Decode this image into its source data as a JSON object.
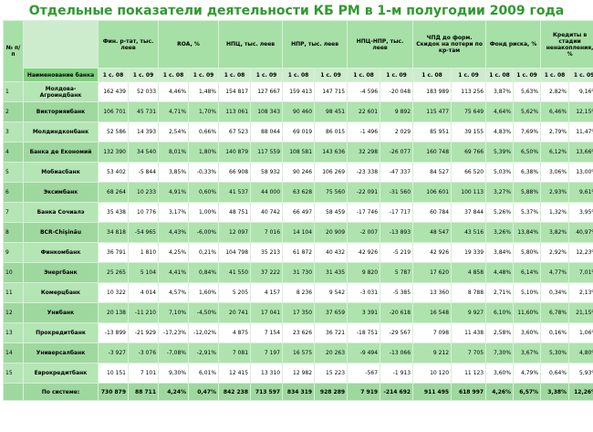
{
  "title": "Отдельные показатели деятельности КБ РМ в 1-м полугодии 2009 года",
  "header": {
    "num": "№ п/п",
    "bank_name": "Наименование банка",
    "groups": [
      "Фин. р-тат, тыс. леев",
      "ROA, %",
      "НПЦ, тыс. леев",
      "НПР, тыс. леев",
      "НПЦ-НПР, тыс. леев",
      "ЧПД до форм. Скидок на потери по кр-там",
      "Фонд риска, %",
      "Кредиты в стадии ненакопления, %"
    ],
    "sub": [
      "1 с. 08",
      "1 с. 09"
    ]
  },
  "rows": [
    {
      "n": "1",
      "name": "Молдова-Агроиндбанк",
      "v": [
        "162 439",
        "52 033",
        "4,46%",
        "1,48%",
        "154 817",
        "127 667",
        "159 413",
        "147 715",
        "-4 596",
        "-20 048",
        "183 989",
        "113 256",
        "3,87%",
        "5,63%",
        "2,82%",
        "9,16%"
      ]
    },
    {
      "n": "2",
      "name": "Викторияибанк",
      "v": [
        "106 701",
        "45 731",
        "4,71%",
        "1,70%",
        "113 061",
        "108 343",
        "90 460",
        "98 451",
        "22 601",
        "9 892",
        "115 477",
        "75 649",
        "4,64%",
        "5,62%",
        "6,46%",
        "12,15%"
      ]
    },
    {
      "n": "3",
      "name": "Молдиндконбанк",
      "v": [
        "52 586",
        "14 393",
        "2,54%",
        "0,66%",
        "67 523",
        "88 044",
        "69 019",
        "86 015",
        "-1 496",
        "2 029",
        "85 951",
        "39 155",
        "4,83%",
        "7,69%",
        "2,79%",
        "11,47%"
      ]
    },
    {
      "n": "4",
      "name": "Банка де Економий",
      "v": [
        "132 390",
        "34 540",
        "8,01%",
        "1,80%",
        "140 879",
        "117 559",
        "108 581",
        "143 636",
        "32 298",
        "-26 077",
        "160 748",
        "69 766",
        "5,39%",
        "6,50%",
        "6,12%",
        "13,66%"
      ]
    },
    {
      "n": "5",
      "name": "Мобиасбанк",
      "v": [
        "53 402",
        "-5 844",
        "3,85%",
        "-0,33%",
        "66 908",
        "58 932",
        "90 246",
        "106 269",
        "-23 338",
        "-47 337",
        "84 527",
        "66 520",
        "5,03%",
        "6,38%",
        "3,06%",
        "13,00%"
      ]
    },
    {
      "n": "6",
      "name": "Эксимбанк",
      "v": [
        "68 264",
        "10 233",
        "4,91%",
        "0,60%",
        "41 537",
        "44 000",
        "63 628",
        "75 560",
        "-22 091",
        "-31 560",
        "106 601",
        "100 113",
        "3,27%",
        "5,88%",
        "2,93%",
        "9,61%"
      ]
    },
    {
      "n": "7",
      "name": "Банка Сочиалэ",
      "v": [
        "35 438",
        "10 776",
        "3,17%",
        "1,00%",
        "48 751",
        "40 742",
        "66 497",
        "58 459",
        "-17 746",
        "-17 717",
        "60 784",
        "37 844",
        "5,26%",
        "5,37%",
        "1,32%",
        "3,95%"
      ]
    },
    {
      "n": "8",
      "name": "BCR-Chişinău",
      "v": [
        "34 818",
        "-54 965",
        "4,43%",
        "-6,00%",
        "12 097",
        "7 016",
        "14 104",
        "20 909",
        "-2 007",
        "-13 893",
        "48 547",
        "43 516",
        "3,26%",
        "13,84%",
        "3,82%",
        "40,97%"
      ]
    },
    {
      "n": "9",
      "name": "Финкомбанк",
      "v": [
        "36 791",
        "1 810",
        "4,25%",
        "0,21%",
        "104 798",
        "35 213",
        "61 872",
        "40 432",
        "42 926",
        "-5 219",
        "42 926",
        "19 339",
        "3,84%",
        "5,80%",
        "2,92%",
        "12,23%"
      ]
    },
    {
      "n": "10",
      "name": "Энергбанк",
      "v": [
        "25 265",
        "5 104",
        "4,41%",
        "0,84%",
        "41 550",
        "37 222",
        "31 730",
        "31 435",
        "9 820",
        "5 787",
        "17 620",
        "4 858",
        "4,48%",
        "6,14%",
        "4,77%",
        "7,01%"
      ]
    },
    {
      "n": "11",
      "name": "Комерцбанк",
      "v": [
        "10 322",
        "4 014",
        "4,57%",
        "1,60%",
        "5 205",
        "4 157",
        "8 236",
        "9 542",
        "-3 031",
        "-5 385",
        "13 360",
        "8 788",
        "2,71%",
        "5,10%",
        "0,34%",
        "2,13%"
      ]
    },
    {
      "n": "12",
      "name": "Унибанк",
      "v": [
        "20 138",
        "-11 210",
        "7,10%",
        "-4,50%",
        "20 741",
        "17 041",
        "17 350",
        "37 659",
        "3 391",
        "-20 618",
        "16 548",
        "9 927",
        "6,10%",
        "11,60%",
        "6,78%",
        "21,15%"
      ]
    },
    {
      "n": "13",
      "name": "Прокредитбанк",
      "v": [
        "-13 899",
        "-21 929",
        "-17,23%",
        "-12,02%",
        "4 875",
        "7 154",
        "23 626",
        "36 721",
        "-18 751",
        "-29 567",
        "7 098",
        "11 438",
        "2,58%",
        "3,60%",
        "0,16%",
        "1,06%"
      ]
    },
    {
      "n": "14",
      "name": "Универсалбанк",
      "v": [
        "-3 927",
        "-3 076",
        "-7,08%",
        "-2,91%",
        "7 081",
        "7 197",
        "16 575",
        "20 263",
        "-9 494",
        "-13 066",
        "9 212",
        "7 705",
        "7,30%",
        "3,67%",
        "5,30%",
        "4,80%"
      ]
    },
    {
      "n": "15",
      "name": "Еврокредитбанк",
      "v": [
        "10 151",
        "7 101",
        "9,30%",
        "6,01%",
        "12 415",
        "13 310",
        "12 982",
        "15 223",
        "-567",
        "-1 913",
        "10 120",
        "11 123",
        "3,60%",
        "4,79%",
        "0,64%",
        "5,93%"
      ]
    }
  ],
  "total": {
    "name": "По системе:",
    "v": [
      "730 879",
      "88 711",
      "4,24%",
      "0,47%",
      "842 238",
      "713 597",
      "834 319",
      "928 289",
      "7 919",
      "-214 692",
      "911 495",
      "618 997",
      "4,26%",
      "6,57%",
      "3,38%",
      "12,26%"
    ]
  }
}
